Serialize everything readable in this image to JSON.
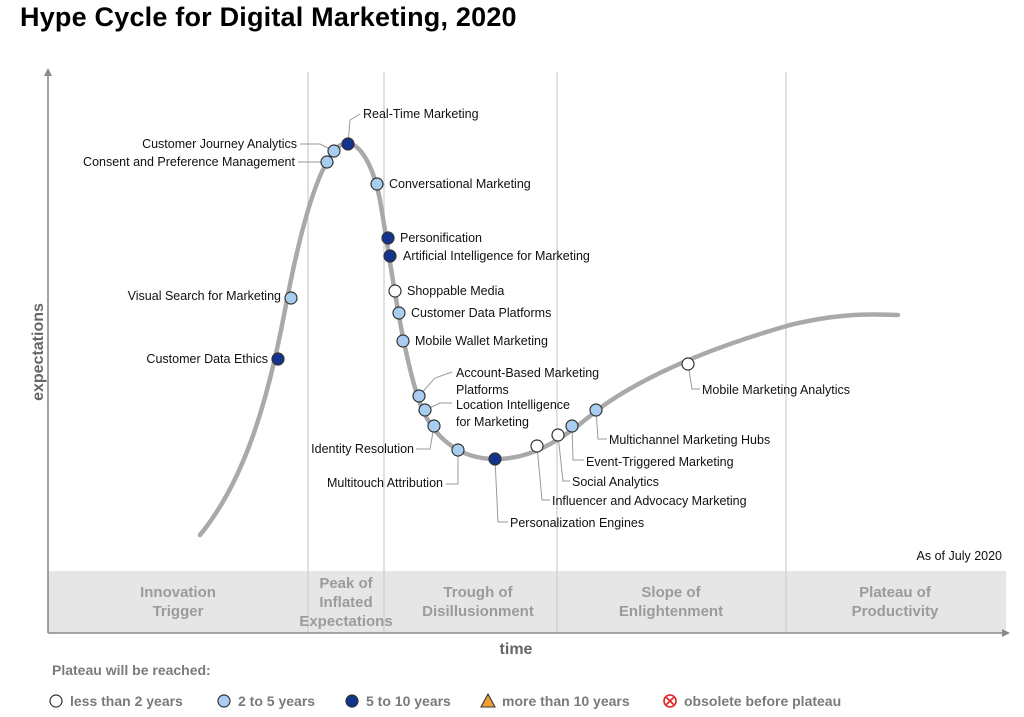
{
  "title": "Hype Cycle for Digital Marketing, 2020",
  "as_of": "As of July 2020",
  "axes": {
    "y": "expectations",
    "x": "time"
  },
  "phases": [
    {
      "lines": [
        "Innovation",
        "Trigger"
      ]
    },
    {
      "lines": [
        "Peak of",
        "Inflated",
        "Expectations"
      ]
    },
    {
      "lines": [
        "Trough of",
        "Disillusionment"
      ]
    },
    {
      "lines": [
        "Slope of",
        "Enlightenment"
      ]
    },
    {
      "lines": [
        "Plateau of",
        "Productivity"
      ]
    }
  ],
  "legend": {
    "title": "Plateau will be reached:",
    "items": [
      {
        "label": "less than 2 years",
        "category": "lt2"
      },
      {
        "label": "2 to 5 years",
        "category": "2to5"
      },
      {
        "label": "5 to 10 years",
        "category": "5to10"
      },
      {
        "label": "more than 10 years",
        "category": "gt10"
      },
      {
        "label": "obsolete before plateau",
        "category": "obsolete"
      }
    ]
  },
  "colors": {
    "lt2": "#ffffff",
    "2to5": "#a8cdf0",
    "5to10": "#12348c",
    "gt10": "#f0a030",
    "obsolete": "#e02020",
    "curve": "#a9a9a9",
    "band": "#e6e6e6"
  },
  "technologies": [
    {
      "lines": [
        "Customer Data Ethics"
      ],
      "category": "5to10"
    },
    {
      "lines": [
        "Visual Search for Marketing"
      ],
      "category": "2to5"
    },
    {
      "lines": [
        "Consent and Preference Management"
      ],
      "category": "2to5"
    },
    {
      "lines": [
        "Customer Journey Analytics"
      ],
      "category": "2to5"
    },
    {
      "lines": [
        "Real-Time Marketing"
      ],
      "category": "5to10"
    },
    {
      "lines": [
        "Conversational Marketing"
      ],
      "category": "2to5"
    },
    {
      "lines": [
        "Personification"
      ],
      "category": "5to10"
    },
    {
      "lines": [
        "Artificial Intelligence for Marketing"
      ],
      "category": "5to10"
    },
    {
      "lines": [
        "Shoppable Media"
      ],
      "category": "lt2"
    },
    {
      "lines": [
        "Customer Data Platforms"
      ],
      "category": "2to5"
    },
    {
      "lines": [
        "Mobile Wallet Marketing"
      ],
      "category": "2to5"
    },
    {
      "lines": [
        "Account-Based Marketing",
        "Platforms"
      ],
      "category": "2to5"
    },
    {
      "lines": [
        "Location Intelligence",
        "for Marketing"
      ],
      "category": "2to5"
    },
    {
      "lines": [
        "Identity Resolution"
      ],
      "category": "2to5"
    },
    {
      "lines": [
        "Multitouch Attribution"
      ],
      "category": "2to5"
    },
    {
      "lines": [
        "Personalization Engines"
      ],
      "category": "5to10"
    },
    {
      "lines": [
        "Influencer and Advocacy Marketing"
      ],
      "category": "lt2"
    },
    {
      "lines": [
        "Social Analytics"
      ],
      "category": "lt2"
    },
    {
      "lines": [
        "Event-Triggered Marketing"
      ],
      "category": "2to5"
    },
    {
      "lines": [
        "Multichannel Marketing Hubs"
      ],
      "category": "2to5"
    },
    {
      "lines": [
        "Mobile Marketing Analytics"
      ],
      "category": "lt2"
    }
  ]
}
